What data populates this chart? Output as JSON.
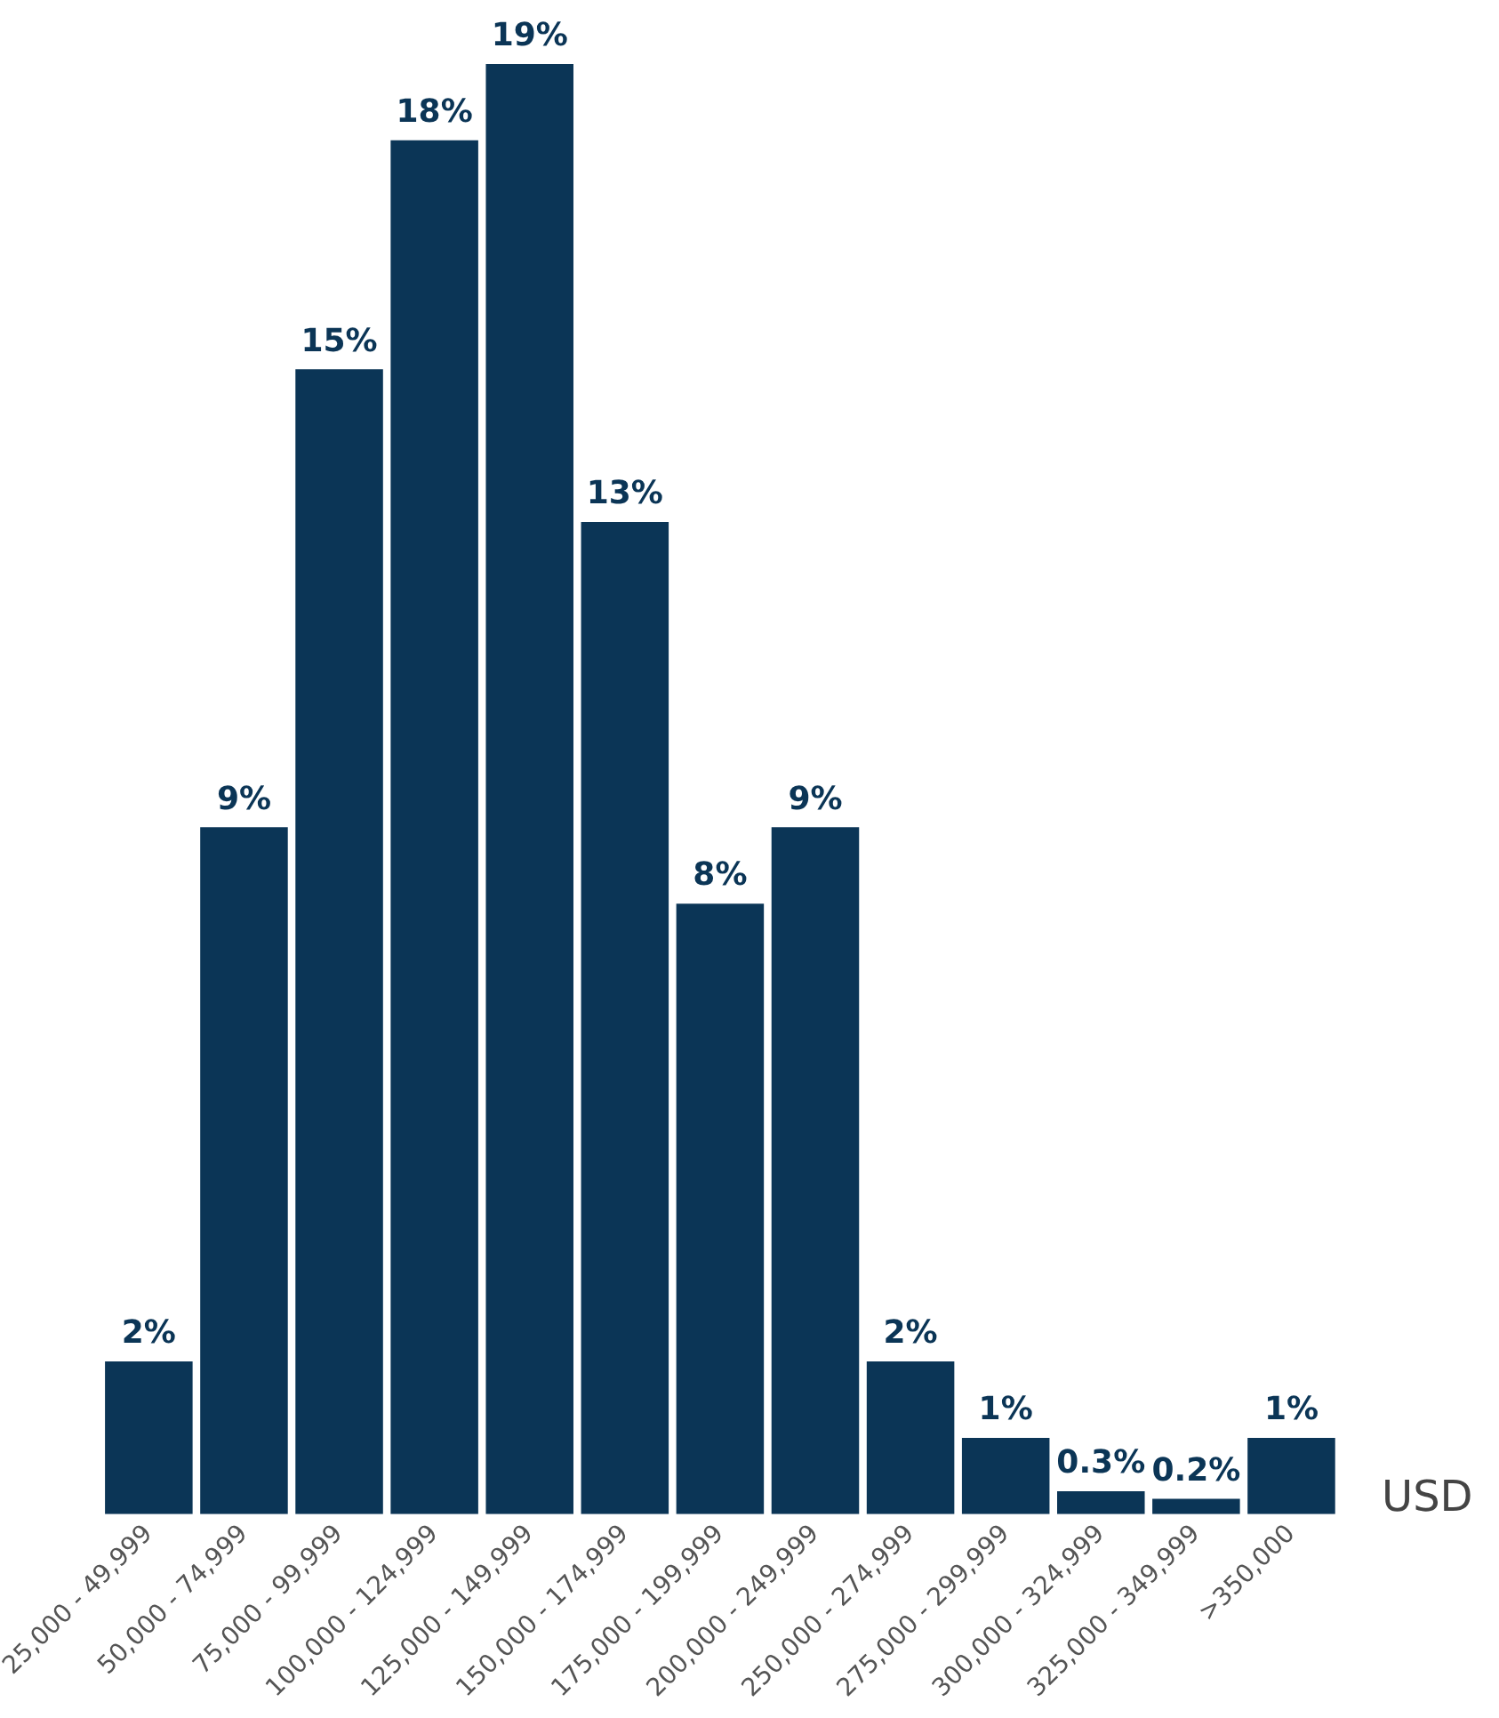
{
  "chart_data": {
    "type": "bar",
    "xlabel": "USD",
    "categories": [
      "25,000 - 49,999",
      "50,000 - 74,999",
      "75,000 - 99,999",
      "100,000 - 124,999",
      "125,000 - 149,999",
      "150,000 - 174,999",
      "175,000 - 199,999",
      "200,000 - 249,999",
      "250,000 - 274,999",
      "275,000 - 299,999",
      "300,000 - 324,999",
      "325,000 - 349,999",
      ">350,000"
    ],
    "values": [
      2,
      9,
      15,
      18,
      19,
      13,
      8,
      9,
      2,
      1,
      0.3,
      0.2,
      1
    ],
    "value_labels": [
      "2%",
      "9%",
      "15%",
      "18%",
      "19%",
      "13%",
      "8%",
      "9%",
      "2%",
      "1%",
      "0.3%",
      "0.2%",
      "1%"
    ],
    "color": "#0b3556",
    "grid": false,
    "legend": false
  }
}
